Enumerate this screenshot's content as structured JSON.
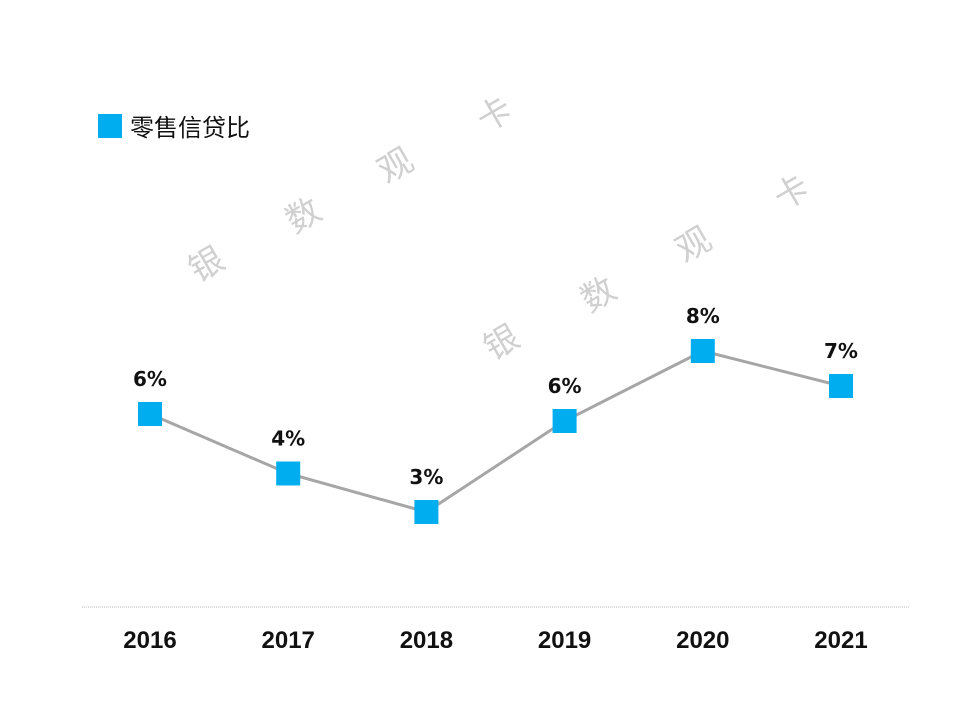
{
  "chart_data": {
    "type": "line",
    "title": "",
    "xlabel": "",
    "ylabel": "",
    "categories": [
      "2016",
      "2017",
      "2018",
      "2019",
      "2020",
      "2021"
    ],
    "series": [
      {
        "name": "零售信贷比",
        "values": [
          6.1,
          4.4,
          3.3,
          5.9,
          7.9,
          6.9
        ],
        "labels": [
          "6%",
          "4%",
          "3%",
          "6%",
          "8%",
          "7%"
        ],
        "marker_color": "#00AEEF",
        "line_color": "#A6A6A6"
      }
    ],
    "legend": "top-left",
    "grid": false
  },
  "watermark": [
    "银",
    "数",
    "观",
    "卡",
    "银",
    "数",
    "观",
    "卡"
  ]
}
